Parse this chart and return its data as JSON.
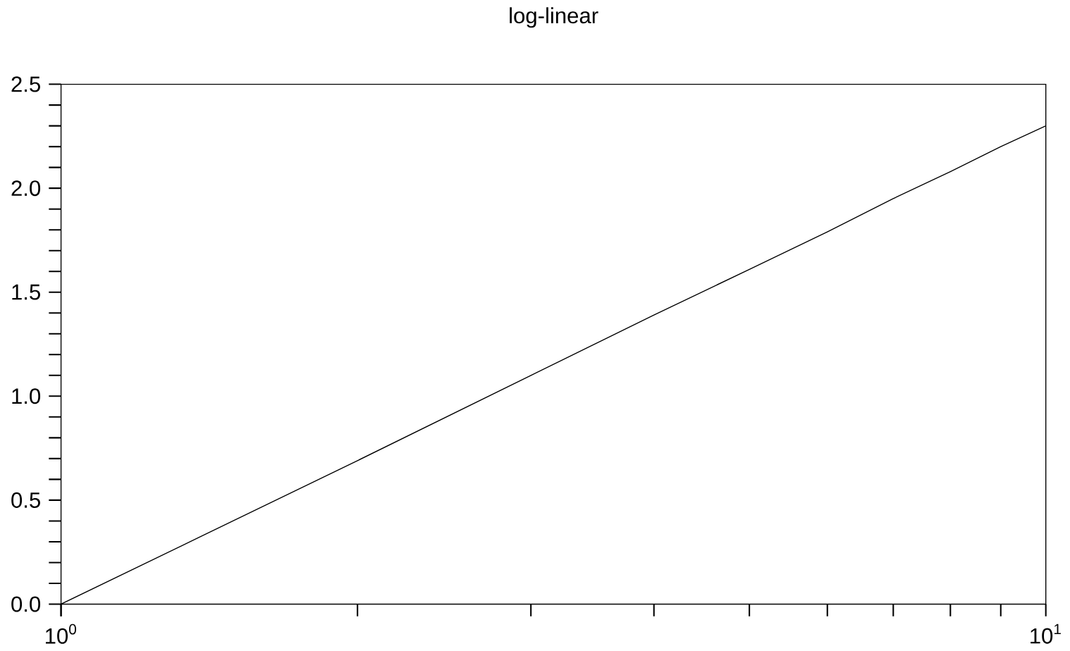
{
  "chart_data": {
    "type": "line",
    "title": "log-linear",
    "log": "x",
    "x": [
      1,
      2,
      3,
      4,
      5,
      6,
      7,
      8,
      9,
      10
    ],
    "series": [
      {
        "color": "#000000",
        "values": [
          0,
          0.69,
          1.1,
          1.39,
          1.61,
          1.79,
          1.95,
          2.08,
          2.2,
          2.3
        ]
      }
    ],
    "xlim": [
      1,
      10
    ],
    "xticks": [
      {
        "value": 1,
        "label": "10$^{0}$"
      },
      {
        "value": 10,
        "label": "10$^{1}$"
      }
    ],
    "ylim": [
      0,
      2.5
    ],
    "yticks": [
      {
        "value": 0,
        "label": "0.0"
      },
      {
        "value": 0.5,
        "label": "0.5"
      },
      {
        "value": 1.0,
        "label": "1.0"
      },
      {
        "value": 1.5,
        "label": "1.5"
      },
      {
        "value": 2.0,
        "label": "2.0"
      },
      {
        "value": 2.5,
        "label": "2.5"
      }
    ],
    "grid": false,
    "marker": "none",
    "line_style": "solid"
  }
}
